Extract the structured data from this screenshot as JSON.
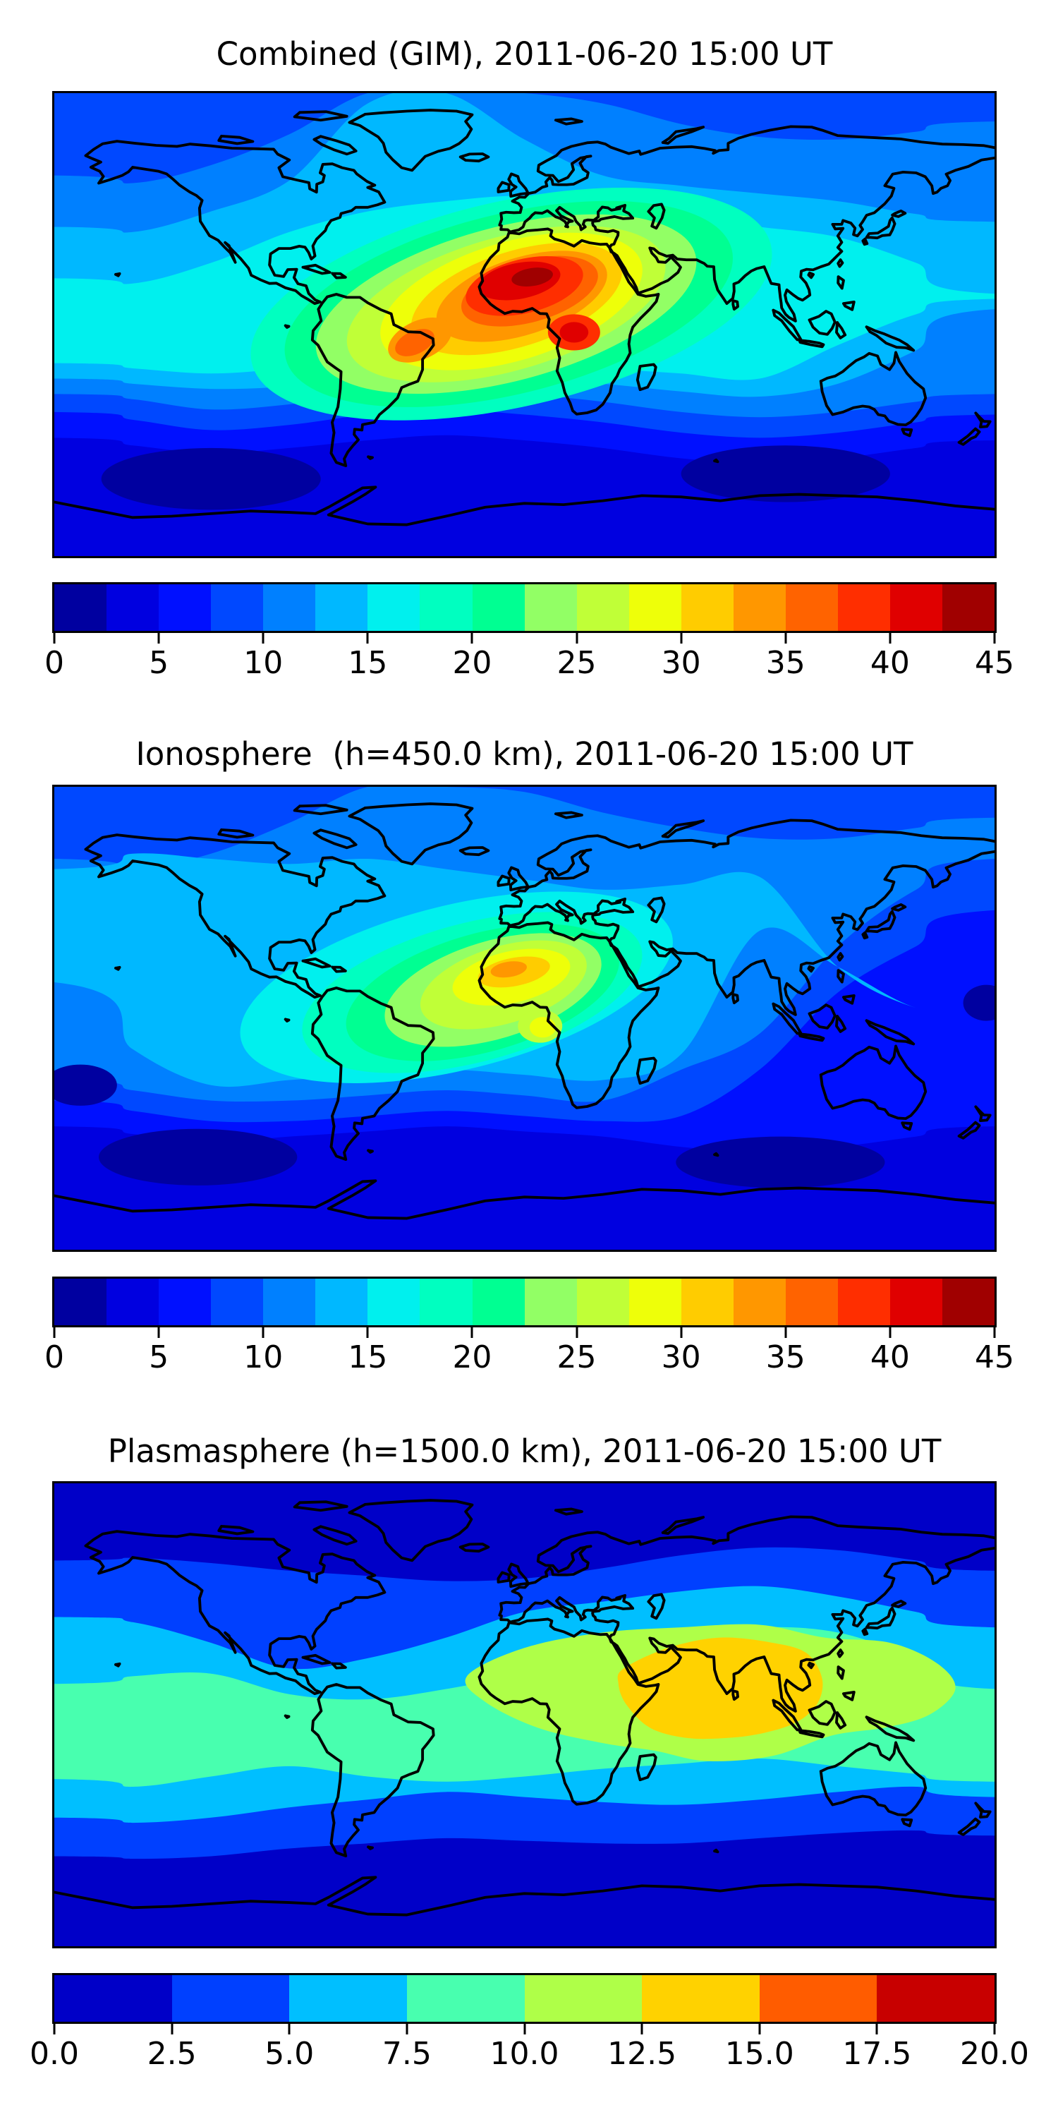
{
  "figure": {
    "background": "#ffffff",
    "text_color": "#000000",
    "colormap": "jet"
  },
  "panels": [
    {
      "id": "combined",
      "title": "Combined (GIM), 2011-06-20 15:00 UT",
      "colorbar": {
        "min": 0,
        "max": 45,
        "tick_labels": [
          "0",
          "5",
          "10",
          "15",
          "20",
          "25",
          "30",
          "35",
          "40",
          "45"
        ],
        "colors": [
          "#0000a0",
          "#0000e0",
          "#0010ff",
          "#0048ff",
          "#0080ff",
          "#00b8ff",
          "#00f0ee",
          "#00ffc0",
          "#00ff92",
          "#92ff65",
          "#c0ff37",
          "#eeff09",
          "#ffcc00",
          "#ff9700",
          "#ff6300",
          "#ff2e00",
          "#e00000",
          "#a00000"
        ]
      }
    },
    {
      "id": "ionosphere",
      "title": "Ionosphere  (h=450.0 km), 2011-06-20 15:00 UT",
      "colorbar": {
        "min": 0,
        "max": 45,
        "tick_labels": [
          "0",
          "5",
          "10",
          "15",
          "20",
          "25",
          "30",
          "35",
          "40",
          "45"
        ],
        "colors": [
          "#0000a0",
          "#0000e0",
          "#0010ff",
          "#0048ff",
          "#0080ff",
          "#00b8ff",
          "#00f0ee",
          "#00ffc0",
          "#00ff92",
          "#92ff65",
          "#c0ff37",
          "#eeff09",
          "#ffcc00",
          "#ff9700",
          "#ff6300",
          "#ff2e00",
          "#e00000",
          "#a00000"
        ]
      }
    },
    {
      "id": "plasmasphere",
      "title": "Plasmasphere (h=1500.0 km), 2011-06-20 15:00 UT",
      "colorbar": {
        "min": 0,
        "max": 20,
        "tick_labels": [
          "0.0",
          "2.5",
          "5.0",
          "7.5",
          "10.0",
          "12.5",
          "15.0",
          "17.5",
          "20.0"
        ],
        "colors": [
          "#0000c8",
          "#0040ff",
          "#00bfff",
          "#48ffaf",
          "#afff48",
          "#ffd200",
          "#ff5c00",
          "#c80000"
        ]
      }
    }
  ],
  "chart_data": [
    {
      "type": "heatmap",
      "subtype": "filled-contour-world-map",
      "title": "Combined (GIM), 2011-06-20 15:00 UT",
      "datetime_ut": "2011-06-20 15:00",
      "projection": "equirectangular",
      "lon_range": [
        -180,
        180
      ],
      "lat_range": [
        -90,
        90
      ],
      "colormap": "jet",
      "contour_levels": [
        0,
        2.5,
        5,
        7.5,
        10,
        12.5,
        15,
        17.5,
        20,
        22.5,
        25,
        27.5,
        30,
        32.5,
        35,
        37.5,
        40,
        42.5,
        45
      ],
      "colorbar_ticks": [
        0,
        5,
        10,
        15,
        20,
        25,
        30,
        35,
        40,
        45
      ],
      "peak": {
        "approx_value_range": "40-45",
        "location": {
          "lon": 0,
          "lat": 17
        },
        "region": "Sahara / North Africa, elongated SW-NE from Brazil toward Arabia"
      },
      "secondary_peak": {
        "approx_value_range": "40-42.5",
        "location": {
          "lon": 19,
          "lat": -3
        },
        "region": "Central Africa just south of the equator"
      },
      "minimum": {
        "approx_value_range": "0-2.5",
        "regions": [
          "high-latitude southern Pacific Ocean",
          "high-latitude southern Indian Ocean"
        ]
      },
      "pattern": "Single strong dayside enhancement centered over Africa; broad cyan-green mid/low-latitude band from the Americas to Asia; dark blue at high latitudes and on the Pacific night side"
    },
    {
      "type": "heatmap",
      "subtype": "filled-contour-world-map",
      "title": "Ionosphere  (h=450.0 km), 2011-06-20 15:00 UT",
      "datetime_ut": "2011-06-20 15:00",
      "height_km": 450.0,
      "projection": "equirectangular",
      "lon_range": [
        -180,
        180
      ],
      "lat_range": [
        -90,
        90
      ],
      "colormap": "jet",
      "contour_levels": [
        0,
        2.5,
        5,
        7.5,
        10,
        12.5,
        15,
        17.5,
        20,
        22.5,
        25,
        27.5,
        30,
        32.5,
        35,
        37.5,
        40,
        42.5,
        45
      ],
      "colorbar_ticks": [
        0,
        5,
        10,
        15,
        20,
        25,
        30,
        35,
        40,
        45
      ],
      "peak": {
        "approx_value_range": "32.5-35",
        "location": {
          "lon": -6,
          "lat": 19
        },
        "region": "West Africa / Sahel"
      },
      "secondary_peak": {
        "approx_value_range": "27.5-30",
        "location": {
          "lon": 7,
          "lat": -4
        },
        "region": "Gulf of Guinea, south of the equator"
      },
      "minimum": {
        "approx_value_range": "0-2.5",
        "regions": [
          "southern Pacific Ocean",
          "southern Indian Ocean",
          "equatorial west Pacific night side"
        ]
      },
      "pattern": "Same dayside enhancement as the GIM but weaker and confined to the Atlantic/Africa sector; night-side Pacific and southern oceans very low"
    },
    {
      "type": "heatmap",
      "subtype": "filled-contour-world-map",
      "title": "Plasmasphere (h=1500.0 km), 2011-06-20 15:00 UT",
      "datetime_ut": "2011-06-20 15:00",
      "height_km": 1500.0,
      "projection": "equirectangular",
      "lon_range": [
        -180,
        180
      ],
      "lat_range": [
        -90,
        90
      ],
      "colormap": "jet",
      "contour_levels": [
        0,
        2.5,
        5,
        7.5,
        10,
        12.5,
        15,
        17.5,
        20
      ],
      "colorbar_ticks": [
        0,
        2.5,
        5,
        7.5,
        10,
        12.5,
        15,
        17.5,
        20
      ],
      "peak": {
        "approx_value_range": "12.5-15",
        "location": {
          "lon": 75,
          "lat": 8
        },
        "region": "Arabian Sea / India / Southeast Asia"
      },
      "minimum": {
        "approx_value_range": "0-2.5",
        "regions": [
          "poleward of about 55 degrees latitude in both hemispheres"
        ]
      },
      "pattern": "Smooth zonal bands parallel to the (magnetic) equator, gently rising toward the east; enhancement 10-15 over Africa-Asia sector, lows at both poles"
    }
  ]
}
